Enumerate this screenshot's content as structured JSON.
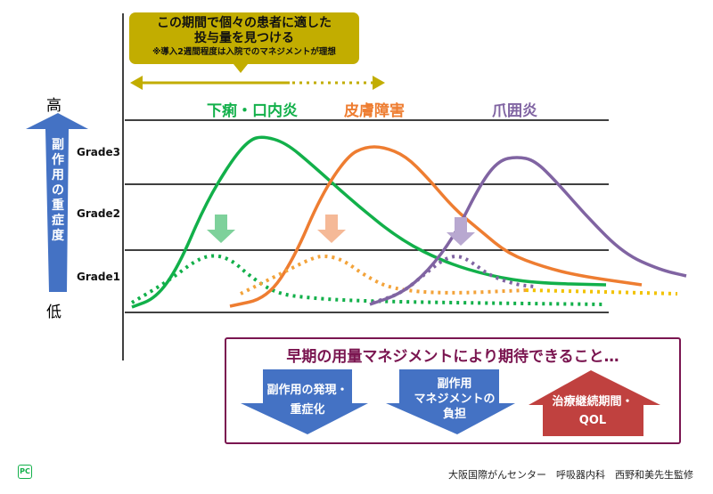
{
  "callout": {
    "line1": "この期間で個々の患者に適した",
    "line2": "投与量を見つける",
    "note": "※導入2週間程度は入院でのマネジメントが理想"
  },
  "axis": {
    "high": "高",
    "low": "低",
    "label": "副作用の重症度",
    "grades": [
      "Grade3",
      "Grade2",
      "Grade1"
    ]
  },
  "series": [
    {
      "name": "下痢・口内炎",
      "color": "#12b04a"
    },
    {
      "name": "皮膚障害",
      "color": "#ee7d31"
    },
    {
      "name": "爪囲炎",
      "color": "#8064a2"
    }
  ],
  "dotted_colors": [
    "#12b04a",
    "#f3a33a",
    "#f2c200"
  ],
  "expectations": {
    "title": "早期の用量マネジメントにより期待できること…",
    "items": [
      {
        "lines": [
          "副作用の発現・",
          "重症化"
        ],
        "direction": "down",
        "color": "#4472c4"
      },
      {
        "lines": [
          "副作用",
          "マネジメントの",
          "負担"
        ],
        "direction": "down",
        "color": "#4472c4"
      },
      {
        "lines": [
          "治療継続期間・",
          "QOL"
        ],
        "direction": "up",
        "color": "#c0413f"
      }
    ],
    "border_color": "#7a1550"
  },
  "footer": {
    "logo": "PC",
    "credit": "大阪国際がんセンター　呼吸器内科　西野和美先生監修"
  }
}
